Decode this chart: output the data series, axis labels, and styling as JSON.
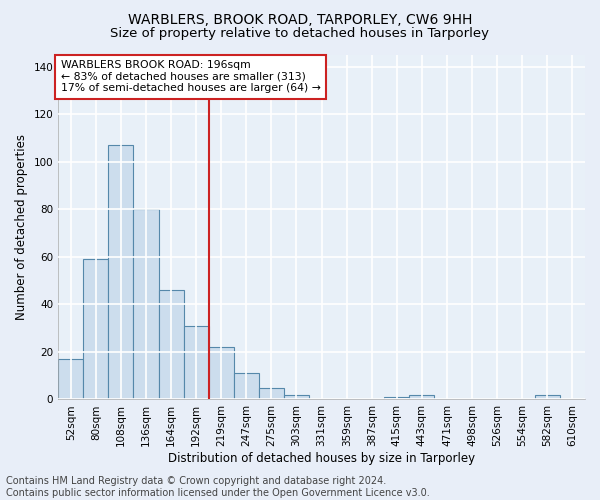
{
  "title": "WARBLERS, BROOK ROAD, TARPORLEY, CW6 9HH",
  "subtitle": "Size of property relative to detached houses in Tarporley",
  "xlabel": "Distribution of detached houses by size in Tarporley",
  "ylabel": "Number of detached properties",
  "bar_labels": [
    "52sqm",
    "80sqm",
    "108sqm",
    "136sqm",
    "164sqm",
    "192sqm",
    "219sqm",
    "247sqm",
    "275sqm",
    "303sqm",
    "331sqm",
    "359sqm",
    "387sqm",
    "415sqm",
    "443sqm",
    "471sqm",
    "498sqm",
    "526sqm",
    "554sqm",
    "582sqm",
    "610sqm"
  ],
  "bar_values": [
    17,
    59,
    107,
    80,
    46,
    31,
    22,
    11,
    5,
    2,
    0,
    0,
    0,
    1,
    2,
    0,
    0,
    0,
    0,
    2,
    0
  ],
  "bar_color": "#ccdded",
  "bar_edge_color": "#5588aa",
  "vline_x_index": 5,
  "vline_color": "#cc2222",
  "annotation_text": "WARBLERS BROOK ROAD: 196sqm\n← 83% of detached houses are smaller (313)\n17% of semi-detached houses are larger (64) →",
  "annotation_box_color": "#ffffff",
  "annotation_box_edge": "#cc2222",
  "ylim": [
    0,
    145
  ],
  "yticks": [
    0,
    20,
    40,
    60,
    80,
    100,
    120,
    140
  ],
  "footer_line1": "Contains HM Land Registry data © Crown copyright and database right 2024.",
  "footer_line2": "Contains public sector information licensed under the Open Government Licence v3.0.",
  "bg_color": "#e8eef8",
  "plot_bg_color": "#e8f0f8",
  "grid_color": "#ffffff",
  "title_fontsize": 10,
  "subtitle_fontsize": 9.5,
  "axis_label_fontsize": 8.5,
  "tick_fontsize": 7.5,
  "annotation_fontsize": 7.8,
  "footer_fontsize": 7.0
}
